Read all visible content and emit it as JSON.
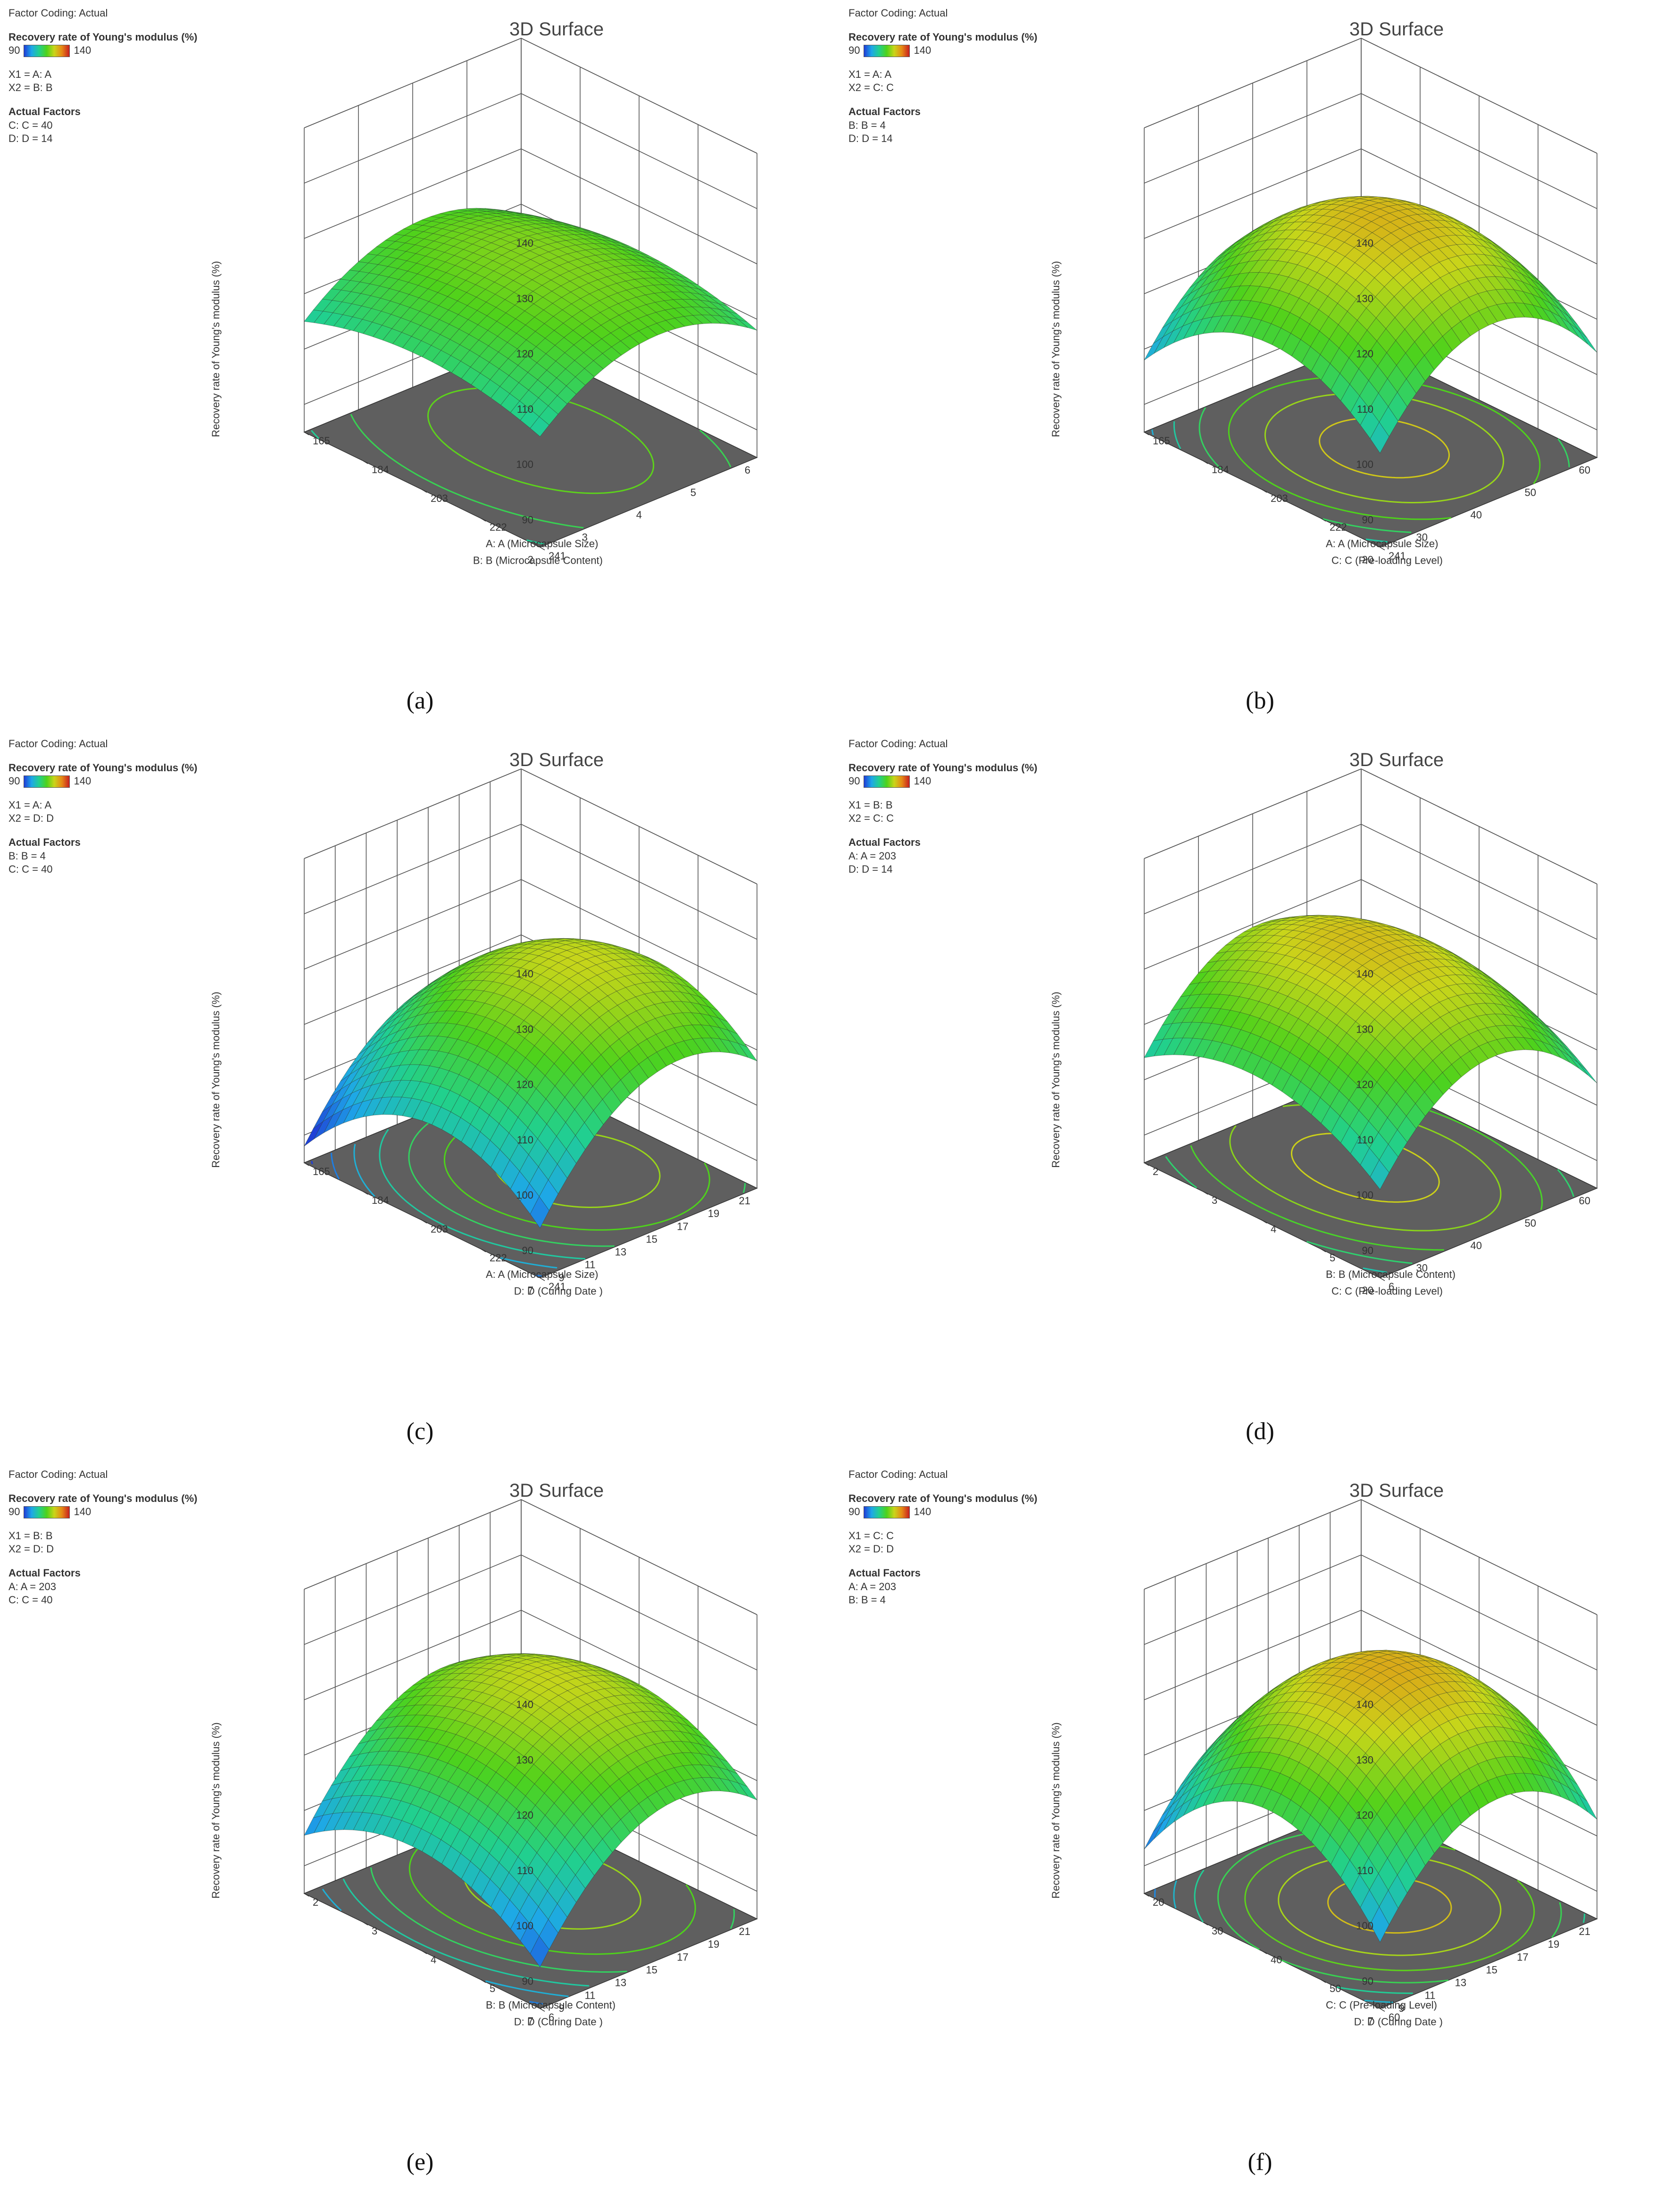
{
  "colorbar": {
    "min": 90,
    "max": 140,
    "colors": [
      "#1f3dd6",
      "#1ea7e8",
      "#21d08e",
      "#4ed21b",
      "#c9d51a",
      "#e68a16",
      "#c81f1f"
    ]
  },
  "plane_color": "#5f5f5f",
  "contour_color": "#d6e01a",
  "chart_data": [
    {
      "type": "surface3d",
      "caption": "(a)",
      "title": "3D Surface",
      "factor_coding": "Factor Coding: Actual",
      "legend_title": "Recovery rate of Young's modulus  (%)",
      "legend_min": "90",
      "legend_max": "140",
      "x1": "X1 = A: A",
      "x2": "X2 = B: B",
      "actual_factors_title": "Actual Factors",
      "actual_factors": [
        "C: C = 40",
        "D: D = 14"
      ],
      "zlabel": "Recovery rate of Young's modulus  (%)",
      "zticks": [
        "90",
        "100",
        "110",
        "120",
        "130",
        "140"
      ],
      "xlabel": "A: A (Microcapsule Size)",
      "xticks": [
        "165",
        "184",
        "203",
        "222",
        "241"
      ],
      "ylabel": "B: B (Microcapsule Content)",
      "yticks": [
        "2",
        "3",
        "4",
        "5",
        "6"
      ],
      "zlim": [
        85,
        140
      ],
      "surface": {
        "center": 118.5,
        "ax": 0.0,
        "ay": 1.5,
        "kx": 4.0,
        "ky": 8.0
      }
    },
    {
      "type": "surface3d",
      "caption": "(b)",
      "title": "3D Surface",
      "factor_coding": "Factor Coding: Actual",
      "legend_title": "Recovery rate of Young's modulus  (%)",
      "legend_min": "90",
      "legend_max": "140",
      "x1": "X1 = A: A",
      "x2": "X2 = C: C",
      "actual_factors_title": "Actual Factors",
      "actual_factors": [
        "B: B = 4",
        "D: D = 14"
      ],
      "zlabel": "Recovery rate of Young's modulus  (%)",
      "zticks": [
        "90",
        "100",
        "110",
        "120",
        "130",
        "140"
      ],
      "xlabel": "A: A (Microcapsule Size)",
      "xticks": [
        "165",
        "184",
        "203",
        "222",
        "241"
      ],
      "ylabel": "C: C (Pre-loading Level)",
      "yticks": [
        "20",
        "30",
        "40",
        "50",
        "60"
      ],
      "zlim": [
        85,
        140
      ],
      "surface": {
        "center": 127,
        "ax": -2.0,
        "ay": 1.0,
        "kx": 12.0,
        "ky": 14.0
      }
    },
    {
      "type": "surface3d",
      "caption": "(c)",
      "title": "3D Surface",
      "factor_coding": "Factor Coding: Actual",
      "legend_title": "Recovery rate of Young's modulus  (%)",
      "legend_min": "90",
      "legend_max": "140",
      "x1": "X1 = A: A",
      "x2": "X2 = D: D",
      "actual_factors_title": "Actual Factors",
      "actual_factors": [
        "B: B = 4",
        "C: C = 40"
      ],
      "zlabel": "Recovery rate of Young's modulus  (%)",
      "zticks": [
        "90",
        "100",
        "110",
        "120",
        "130",
        "140"
      ],
      "xlabel": "A: A (Microcapsule Size)",
      "xticks": [
        "165",
        "184",
        "203",
        "222",
        "241"
      ],
      "ylabel": "D: D (Curing Date )",
      "yticks": [
        "7",
        "9",
        "11",
        "13",
        "15",
        "17",
        "19",
        "21"
      ],
      "zlim": [
        85,
        140
      ],
      "surface": {
        "center": 122,
        "ax": -3.0,
        "ay": 7.0,
        "kx": 12.0,
        "ky": 12.0
      }
    },
    {
      "type": "surface3d",
      "caption": "(d)",
      "title": "3D Surface",
      "factor_coding": "Factor Coding: Actual",
      "legend_title": "Recovery rate of Young's modulus  (%)",
      "legend_min": "90",
      "legend_max": "140",
      "x1": "X1 = B: B",
      "x2": "X2 = C: C",
      "actual_factors_title": "Actual Factors",
      "actual_factors": [
        "A: A = 203",
        "D: D = 14"
      ],
      "zlabel": "Recovery rate of Young's modulus  (%)",
      "zticks": [
        "90",
        "100",
        "110",
        "120",
        "130",
        "140"
      ],
      "xlabel": "B: B (Microcapsule Content)",
      "xticks": [
        "2",
        "3",
        "4",
        "5",
        "6"
      ],
      "ylabel": "C: C (Pre-loading Level)",
      "yticks": [
        "20",
        "30",
        "40",
        "50",
        "60"
      ],
      "zlim": [
        85,
        140
      ],
      "surface": {
        "center": 126,
        "ax": 1.5,
        "ay": 1.5,
        "kx": 8.0,
        "ky": 14.0
      }
    },
    {
      "type": "surface3d",
      "caption": "(e)",
      "title": "3D Surface",
      "factor_coding": "Factor Coding: Actual",
      "legend_title": "Recovery rate of Young's modulus  (%)",
      "legend_min": "90",
      "legend_max": "140",
      "x1": "X1 = B: B",
      "x2": "X2 = D: D",
      "actual_factors_title": "Actual Factors",
      "actual_factors": [
        "A: A = 203",
        "C: C = 40"
      ],
      "zlabel": "Recovery rate of Young's modulus  (%)",
      "zticks": [
        "90",
        "100",
        "110",
        "120",
        "130",
        "140"
      ],
      "xlabel": "B: B (Microcapsule Content)",
      "xticks": [
        "2",
        "3",
        "4",
        "5",
        "6"
      ],
      "ylabel": "D: D (Curing Date )",
      "yticks": [
        "7",
        "9",
        "11",
        "13",
        "15",
        "17",
        "19",
        "21"
      ],
      "zlim": [
        85,
        140
      ],
      "surface": {
        "center": 122,
        "ax": 1.5,
        "ay": 7.0,
        "kx": 9.0,
        "ky": 12.0
      }
    },
    {
      "type": "surface3d",
      "caption": "(f)",
      "title": "3D Surface",
      "factor_coding": "Factor Coding: Actual",
      "legend_title": "Recovery rate of Young's modulus  (%)",
      "legend_min": "90",
      "legend_max": "140",
      "x1": "X1 = C: C",
      "x2": "X2 = D: D",
      "actual_factors_title": "Actual Factors",
      "actual_factors": [
        "A: A = 203",
        "B: B = 4"
      ],
      "zlabel": "Recovery rate of Young's modulus  (%)",
      "zticks": [
        "90",
        "100",
        "110",
        "120",
        "130",
        "140"
      ],
      "xlabel": "C: C (Pre-loading Level)",
      "xticks": [
        "20",
        "30",
        "40",
        "50",
        "60"
      ],
      "ylabel": "D: D (Curing Date )",
      "yticks": [
        "7",
        "9",
        "11",
        "13",
        "15",
        "17",
        "19",
        "21"
      ],
      "zlim": [
        85,
        140
      ],
      "surface": {
        "center": 128,
        "ax": -2.0,
        "ay": 3.0,
        "kx": 16.0,
        "ky": 14.0
      }
    }
  ]
}
